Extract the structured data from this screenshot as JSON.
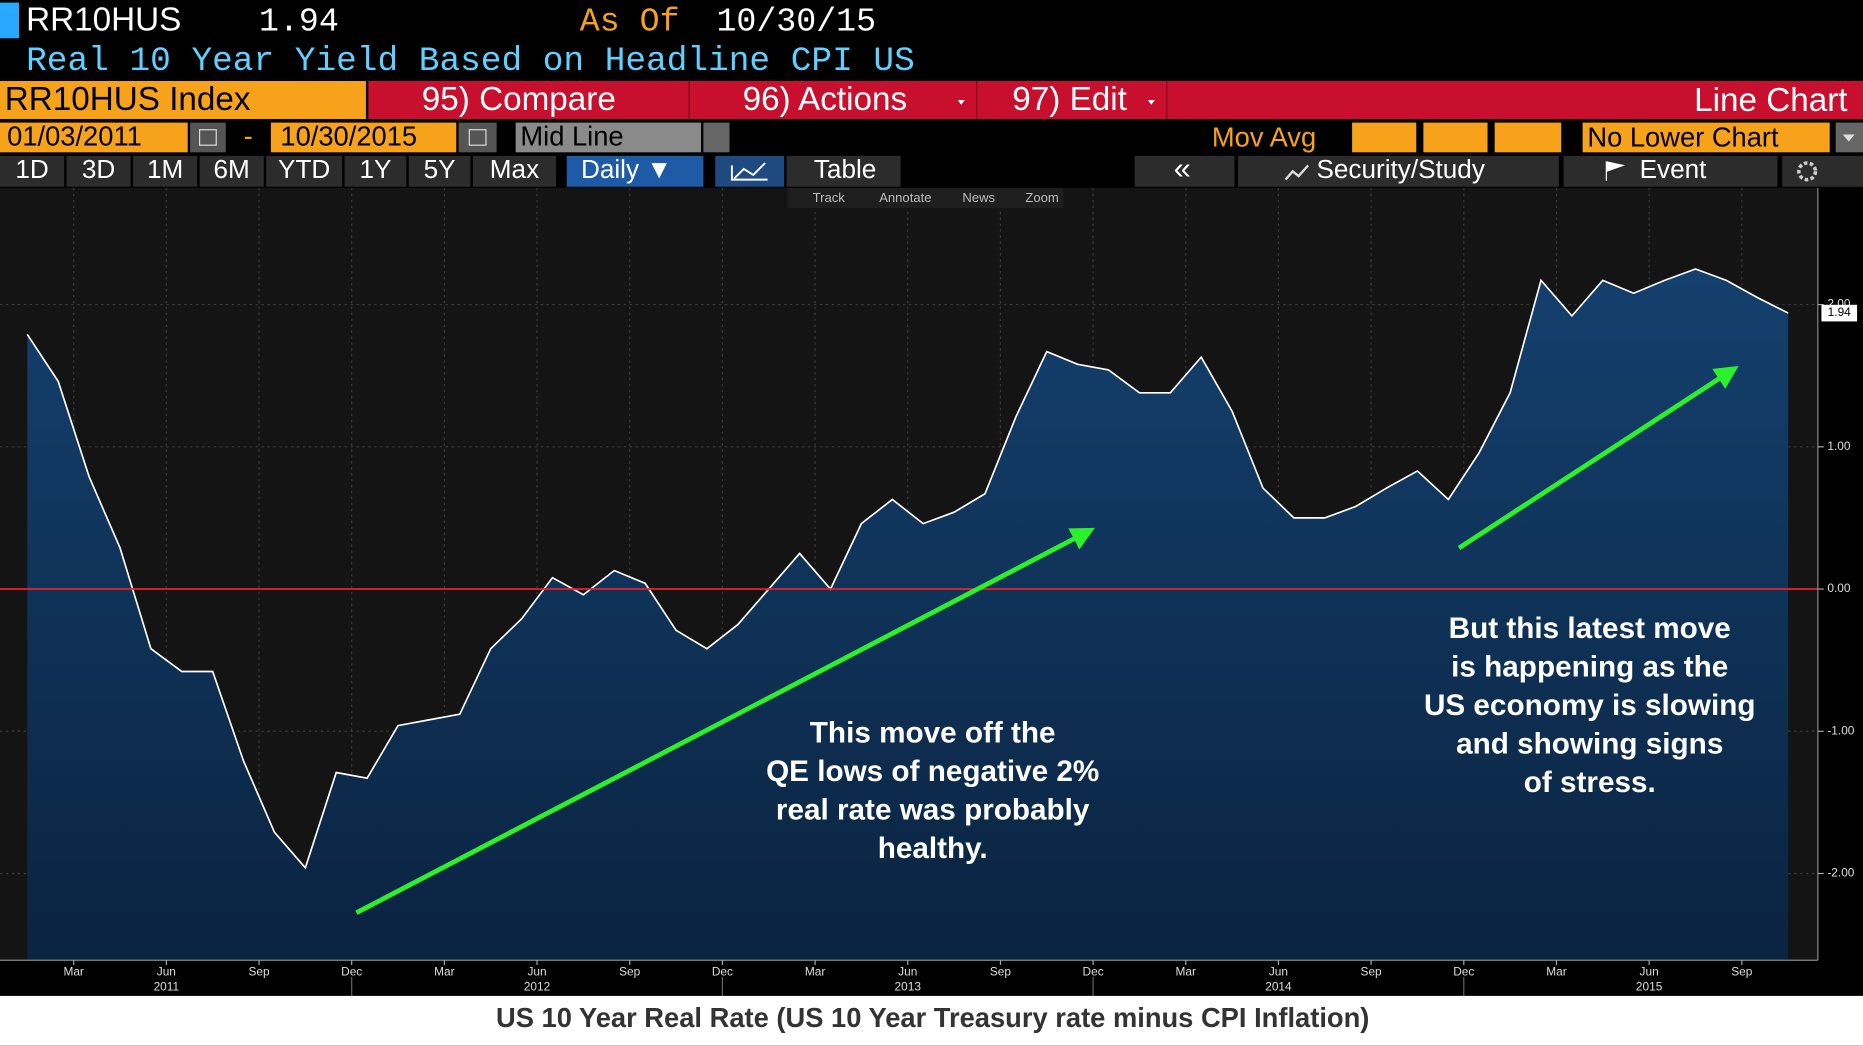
{
  "header": {
    "ticker": "RR10HUS",
    "as_of_label": "As Of",
    "as_of": "10/30/15",
    "description": "Real 10 Year Yield Based on Headline CPI US"
  },
  "menu": {
    "security": "RR10HUS Index",
    "compare": "95) Compare",
    "actions": "96) Actions",
    "edit": "97) Edit",
    "view": "Line Chart"
  },
  "range_bar": {
    "start": "01/03/2011",
    "dash": "-",
    "end": "10/30/2015",
    "line_mode": "Mid Line",
    "mov_avg": "Mov Avg",
    "lower_chart": "No Lower Chart"
  },
  "period_buttons": [
    "1D",
    "3D",
    "1M",
    "6M",
    "YTD",
    "1Y",
    "5Y",
    "Max"
  ],
  "toolbar": {
    "frequency": "Daily ▼",
    "table": "Table",
    "collapse": "«",
    "study": "Security/Study",
    "event": "Event"
  },
  "chart_tools": [
    "Track",
    "Annotate",
    "News",
    "Zoom"
  ],
  "chart_data": {
    "type": "line",
    "caption": "US 10 Year Real Rate (US 10 Year Treasury rate minus CPI Inflation)",
    "annotations": [
      {
        "lines": [
          "This move off the",
          "QE lows of negative 2%",
          "real rate was probably",
          "healthy."
        ]
      },
      {
        "lines": [
          "But this latest move",
          "is happening as the",
          "US economy is slowing",
          "and showing signs",
          "of stress."
        ]
      }
    ],
    "x": [
      "2011-01",
      "2011-02",
      "2011-03",
      "2011-04",
      "2011-05",
      "2011-06",
      "2011-07",
      "2011-08",
      "2011-09",
      "2011-10",
      "2011-11",
      "2011-12",
      "2012-01",
      "2012-02",
      "2012-03",
      "2012-04",
      "2012-05",
      "2012-06",
      "2012-07",
      "2012-08",
      "2012-09",
      "2012-10",
      "2012-11",
      "2012-12",
      "2013-01",
      "2013-02",
      "2013-03",
      "2013-04",
      "2013-05",
      "2013-06",
      "2013-07",
      "2013-08",
      "2013-09",
      "2013-10",
      "2013-11",
      "2013-12",
      "2014-01",
      "2014-02",
      "2014-03",
      "2014-04",
      "2014-05",
      "2014-06",
      "2014-07",
      "2014-08",
      "2014-09",
      "2014-10",
      "2014-11",
      "2014-12",
      "2015-01",
      "2015-02",
      "2015-03",
      "2015-04",
      "2015-05",
      "2015-06",
      "2015-07",
      "2015-08",
      "2015-09",
      "2015-10"
    ],
    "values": [
      1.79,
      1.46,
      0.79,
      0.29,
      -0.42,
      -0.58,
      -0.58,
      -1.21,
      -1.71,
      -1.96,
      -1.29,
      -1.33,
      -0.96,
      -0.92,
      -0.88,
      -0.42,
      -0.21,
      0.08,
      -0.04,
      0.13,
      0.04,
      -0.29,
      -0.42,
      -0.25,
      0.0,
      0.25,
      0.0,
      0.46,
      0.63,
      0.46,
      0.54,
      0.67,
      1.21,
      1.67,
      1.58,
      1.54,
      1.38,
      1.38,
      1.63,
      1.25,
      0.71,
      0.5,
      0.5,
      0.58,
      0.71,
      0.83,
      0.63,
      0.96,
      1.38,
      2.17,
      1.92,
      2.17,
      2.08,
      2.17,
      2.25,
      2.17,
      2.05,
      1.94
    ],
    "color": "#ffffff",
    "fill_color": "#0d2f55",
    "hline": {
      "value": 0,
      "color": "#e8202a"
    },
    "xlim": [
      "2011-01",
      "2015-11"
    ],
    "xticks": [
      {
        "value": "2011-03",
        "label": "Mar"
      },
      {
        "value": "2011-06",
        "label": "Jun"
      },
      {
        "value": "2011-09",
        "label": "Sep"
      },
      {
        "value": "2011-12",
        "label": "Dec"
      },
      {
        "value": "2012-03",
        "label": "Mar"
      },
      {
        "value": "2012-06",
        "label": "Jun"
      },
      {
        "value": "2012-09",
        "label": "Sep"
      },
      {
        "value": "2012-12",
        "label": "Dec"
      },
      {
        "value": "2013-03",
        "label": "Mar"
      },
      {
        "value": "2013-06",
        "label": "Jun"
      },
      {
        "value": "2013-09",
        "label": "Sep"
      },
      {
        "value": "2013-12",
        "label": "Dec"
      },
      {
        "value": "2014-03",
        "label": "Mar"
      },
      {
        "value": "2014-06",
        "label": "Jun"
      },
      {
        "value": "2014-09",
        "label": "Sep"
      },
      {
        "value": "2014-12",
        "label": "Dec"
      },
      {
        "value": "2015-03",
        "label": "Mar"
      },
      {
        "value": "2015-06",
        "label": "Jun"
      },
      {
        "value": "2015-09",
        "label": "Sep"
      }
    ],
    "year_labels": [
      {
        "value": "2011-06",
        "label": "2011"
      },
      {
        "value": "2012-06",
        "label": "2012"
      },
      {
        "value": "2013-06",
        "label": "2013"
      },
      {
        "value": "2014-06",
        "label": "2014"
      },
      {
        "value": "2015-06",
        "label": "2015"
      }
    ],
    "ylim": [
      -2.61,
      2.82
    ],
    "yticks": [
      {
        "value": 2,
        "label": "2.00"
      },
      {
        "value": 1,
        "label": "1.00"
      },
      {
        "value": 0,
        "label": "0.00"
      },
      {
        "value": -1,
        "label": "-1.00"
      },
      {
        "value": -2,
        "label": "-2.00"
      }
    ],
    "grid": true
  }
}
